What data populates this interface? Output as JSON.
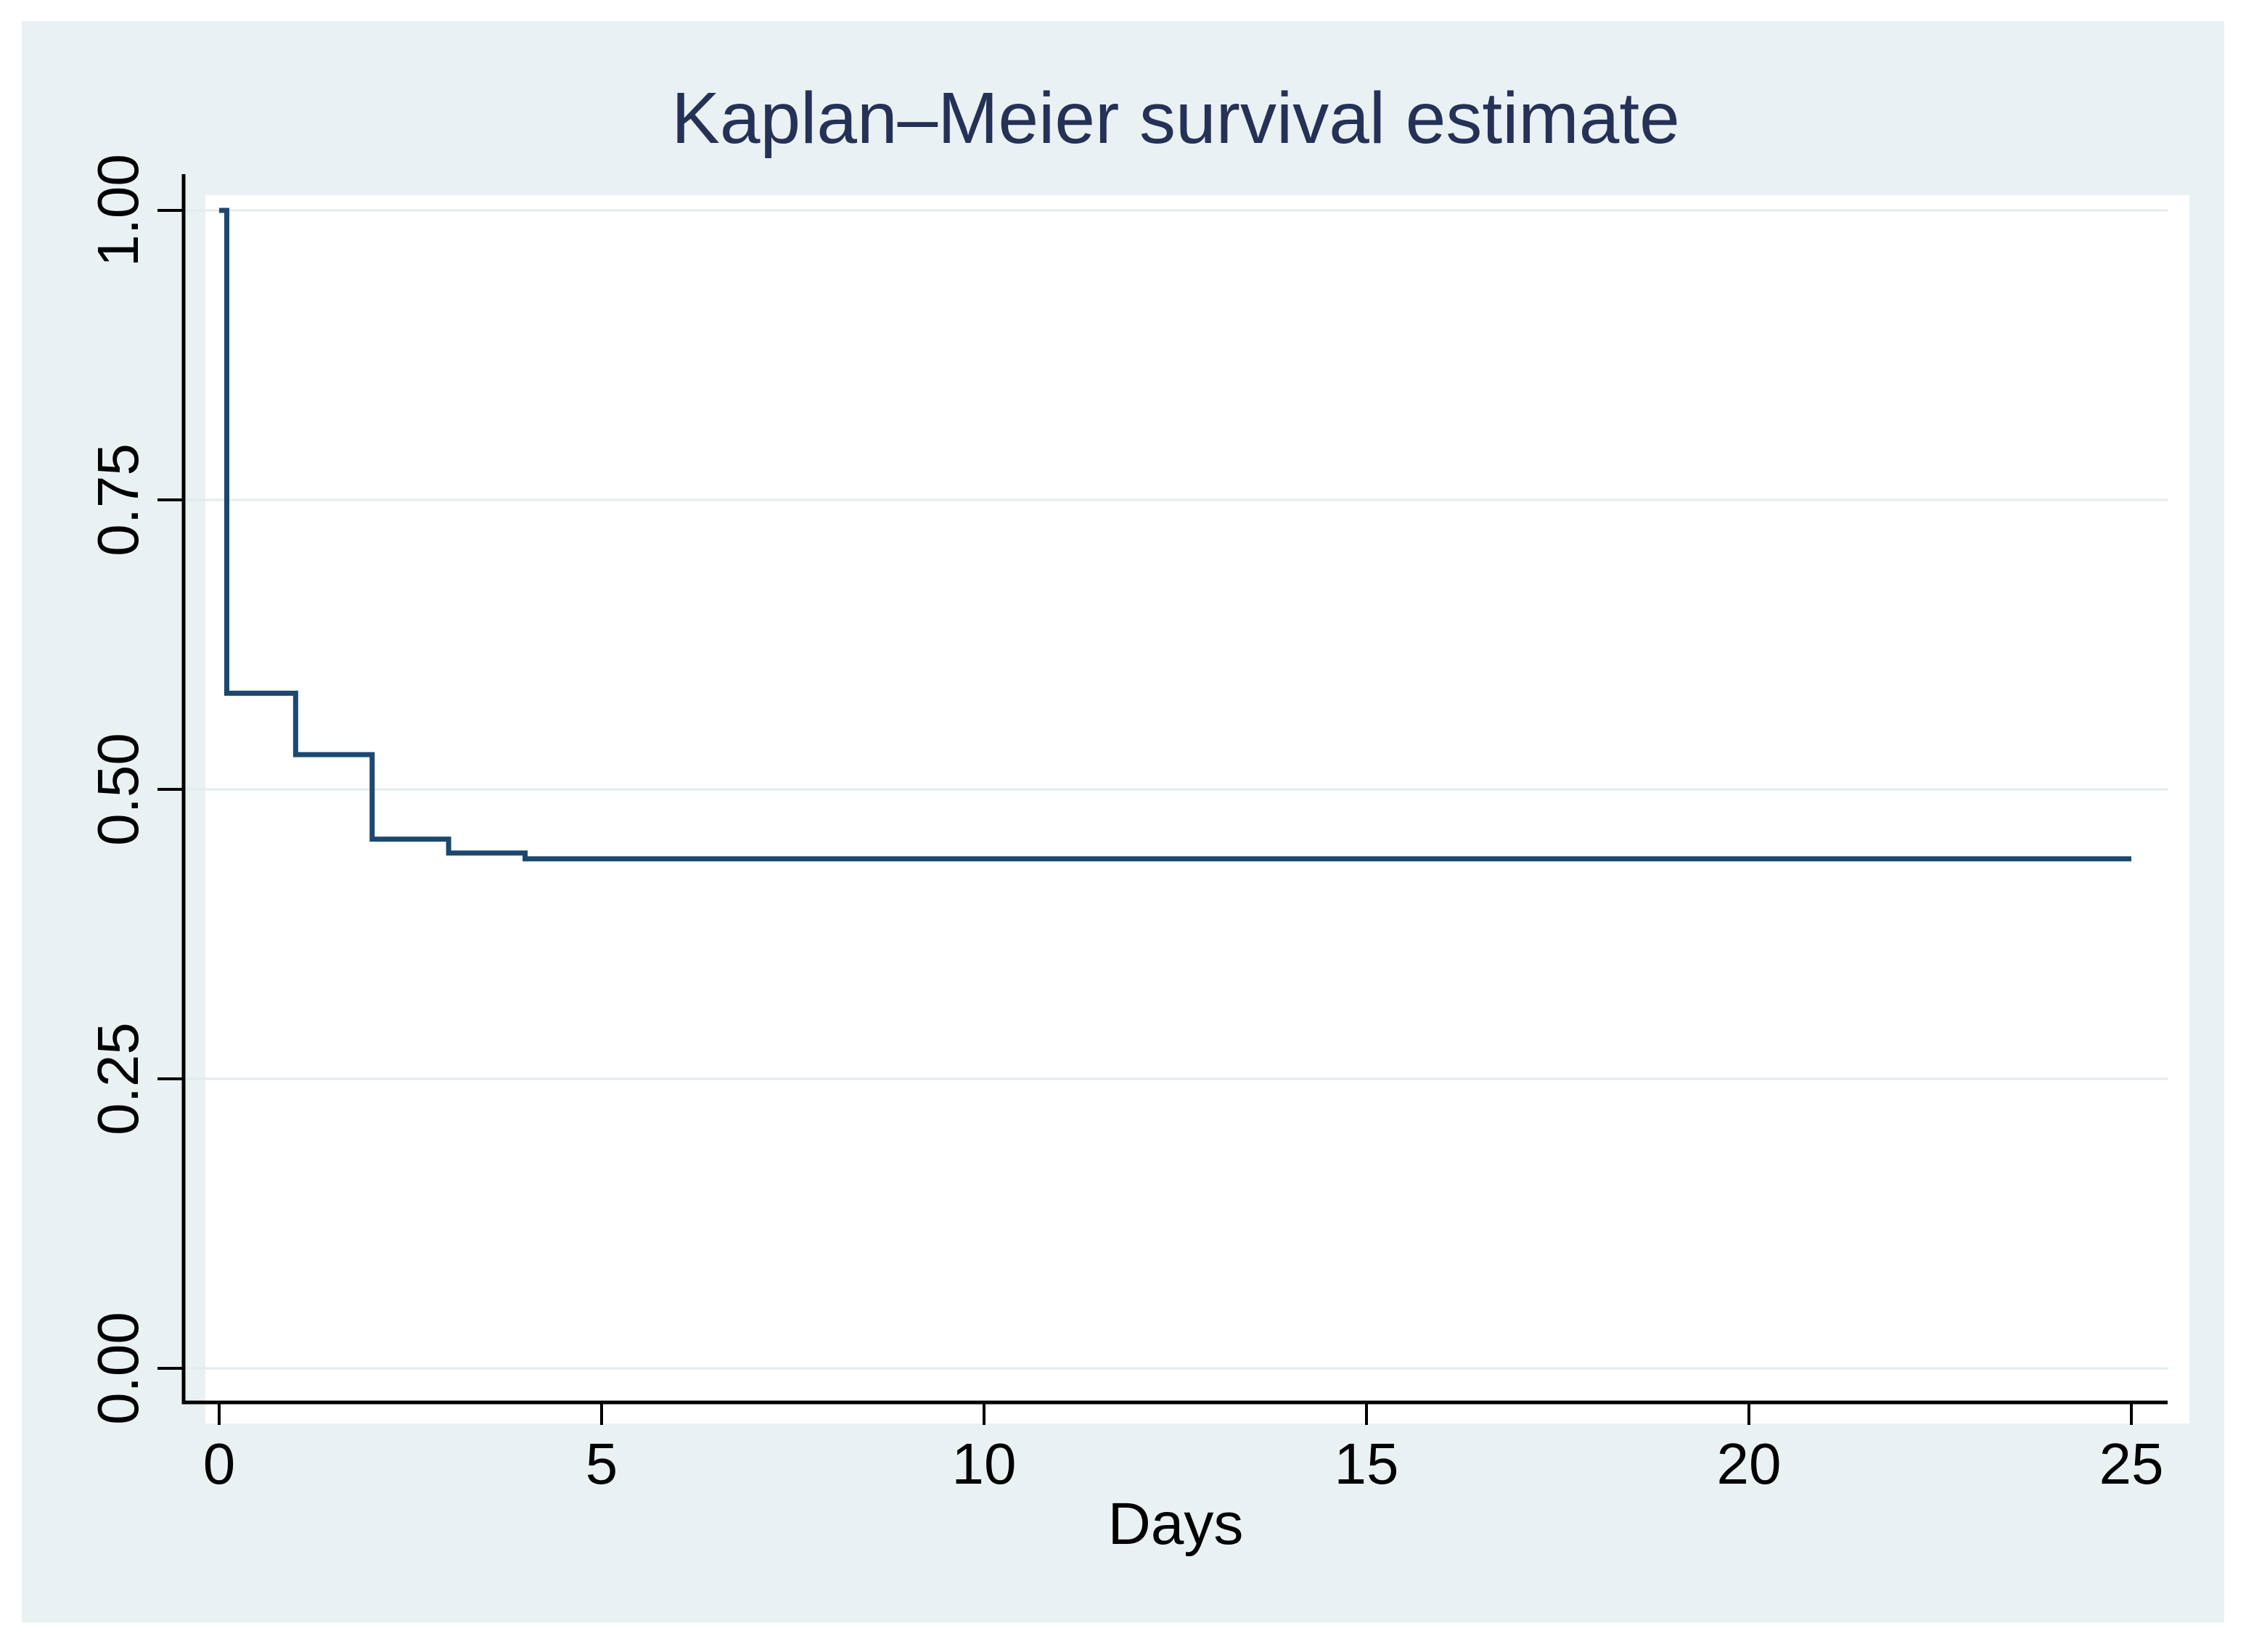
{
  "chart_data": {
    "type": "line",
    "subtype": "step",
    "title": "Kaplan–Meier survival estimate",
    "xlabel": "Days",
    "ylabel": "",
    "xlim": [
      0,
      25
    ],
    "ylim": [
      0,
      1
    ],
    "grid": "horizontal-only",
    "legend": "none",
    "xticks": [
      {
        "label": "0",
        "value": 0
      },
      {
        "label": "5",
        "value": 5
      },
      {
        "label": "10",
        "value": 10
      },
      {
        "label": "15",
        "value": 15
      },
      {
        "label": "20",
        "value": 20
      },
      {
        "label": "25",
        "value": 25
      }
    ],
    "yticks": [
      {
        "label": "0.00",
        "value": 0
      },
      {
        "label": "0.25",
        "value": 0.25
      },
      {
        "label": "0.50",
        "value": 0.5
      },
      {
        "label": "0.75",
        "value": 0.75
      },
      {
        "label": "1.00",
        "value": 1
      }
    ],
    "series": [
      {
        "name": "Kaplan–Meier survival estimate",
        "step_points": [
          [
            0,
            1.0
          ],
          [
            0.1,
            1.0
          ],
          [
            0.1,
            0.583
          ],
          [
            1,
            0.583
          ],
          [
            1,
            0.53
          ],
          [
            2,
            0.53
          ],
          [
            2,
            0.457
          ],
          [
            3,
            0.457
          ],
          [
            3,
            0.445
          ],
          [
            4,
            0.445
          ],
          [
            4,
            0.44
          ],
          [
            25,
            0.44
          ]
        ]
      }
    ]
  },
  "colors": {
    "page_background": "#ffffff",
    "panel_background": "#eaf1f3",
    "plot_background": "#ffffff",
    "gridline": "#e2ecef",
    "axis": "#000000",
    "tick_text": "#000000",
    "title_text": "#253156",
    "curve": "#1c486f"
  }
}
